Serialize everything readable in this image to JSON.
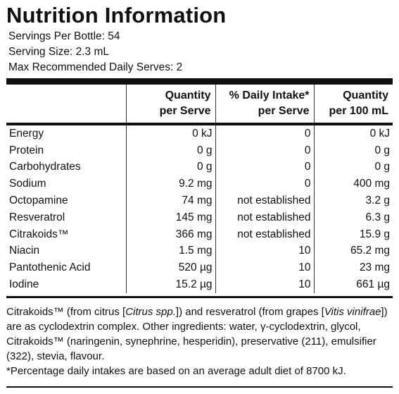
{
  "panel": {
    "title": "Nutrition Information",
    "servings_per_bottle": "Servings Per Bottle: 54",
    "serving_size": "Serving Size: 2.3 mL",
    "max_serves": "Max Recommended Daily Serves: 2"
  },
  "table": {
    "headers": [
      {
        "line1": "",
        "line2": ""
      },
      {
        "line1": "Quantity",
        "line2": "per Serve"
      },
      {
        "line1": "% Daily Intake*",
        "line2": "per Serve"
      },
      {
        "line1": "Quantity",
        "line2": "per 100 mL"
      }
    ],
    "rows": [
      {
        "name": "Energy",
        "per_serve": "0 kJ",
        "daily": "0",
        "per_100": "0 kJ"
      },
      {
        "name": "Protein",
        "per_serve": "0 g",
        "daily": "0",
        "per_100": "0 g"
      },
      {
        "name": "Carbohydrates",
        "per_serve": "0 g",
        "daily": "0",
        "per_100": "0 g"
      },
      {
        "name": "Sodium",
        "per_serve": "9.2 mg",
        "daily": "0",
        "per_100": "400 mg"
      },
      {
        "name": "Octopamine",
        "per_serve": "74 mg",
        "daily": "not established",
        "per_100": "3.2 g"
      },
      {
        "name": "Resveratrol",
        "per_serve": "145 mg",
        "daily": "not established",
        "per_100": "6.3 g"
      },
      {
        "name": "Citrakoids™",
        "per_serve": "366 mg",
        "daily": "not established",
        "per_100": "15.9 g"
      },
      {
        "name": "Niacin",
        "per_serve": "1.5 mg",
        "daily": "10",
        "per_100": "65.2 mg"
      },
      {
        "name": "Pantothenic Acid",
        "per_serve": "520 µg",
        "daily": "10",
        "per_100": "23 mg"
      },
      {
        "name": "Iodine",
        "per_serve": "15.2 µg",
        "daily": "10",
        "per_100": "661 µg"
      }
    ]
  },
  "footnote": {
    "p1_a": "Citrakoids™ (from citrus [",
    "p1_b": "Citrus spp.",
    "p1_c": "]) and resveratrol (from grapes [",
    "p1_d": "Vitis vinifrae",
    "p1_e": "]) are as cyclodextrin complex. Other ingredients: water, γ-cyclodextrin, glycol, Citrakoids™ (naringenin, synephrine, hesperidin), preservative (211), emulsifier (322), stevia, flavour.",
    "p2": "*Percentage daily intakes are based on an average adult diet of 8700 kJ."
  }
}
